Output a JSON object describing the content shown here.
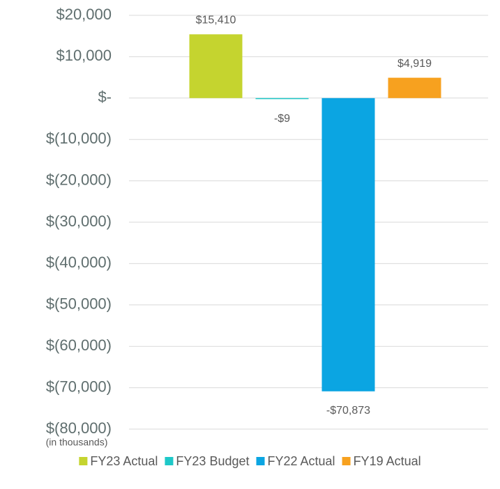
{
  "chart_data": {
    "type": "bar",
    "annotation": "(in thousands)",
    "categories": [
      null
    ],
    "series": [
      {
        "name": "FY23 Actual",
        "color": "#c5d42f",
        "values": [
          15410
        ],
        "value_labels": [
          "$15,410"
        ]
      },
      {
        "name": "FY23 Budget",
        "color": "#1ec8c8",
        "values": [
          -9
        ],
        "value_labels": [
          "-$9"
        ]
      },
      {
        "name": "FY22 Actual",
        "color": "#0ba5e2",
        "values": [
          -70873
        ],
        "value_labels": [
          "-$70,873"
        ]
      },
      {
        "name": "FY19 Actual",
        "color": "#f7a11f",
        "values": [
          4919
        ],
        "value_labels": [
          "$4,919"
        ]
      }
    ],
    "ylim": [
      -80000,
      20000
    ],
    "yticks": [
      {
        "value": -80000,
        "label": "$(80,000)"
      },
      {
        "value": -70000,
        "label": "$(70,000)"
      },
      {
        "value": -60000,
        "label": "$(60,000)"
      },
      {
        "value": -50000,
        "label": "$(50,000)"
      },
      {
        "value": -40000,
        "label": "$(40,000)"
      },
      {
        "value": -30000,
        "label": "$(30,000)"
      },
      {
        "value": -20000,
        "label": "$(20,000)"
      },
      {
        "value": -10000,
        "label": "$(10,000)"
      },
      {
        "value": 0,
        "label": "$-"
      },
      {
        "value": 10000,
        "label": "$10,000"
      },
      {
        "value": 20000,
        "label": "$20,000"
      }
    ],
    "grid": true,
    "legend": "bottom"
  }
}
